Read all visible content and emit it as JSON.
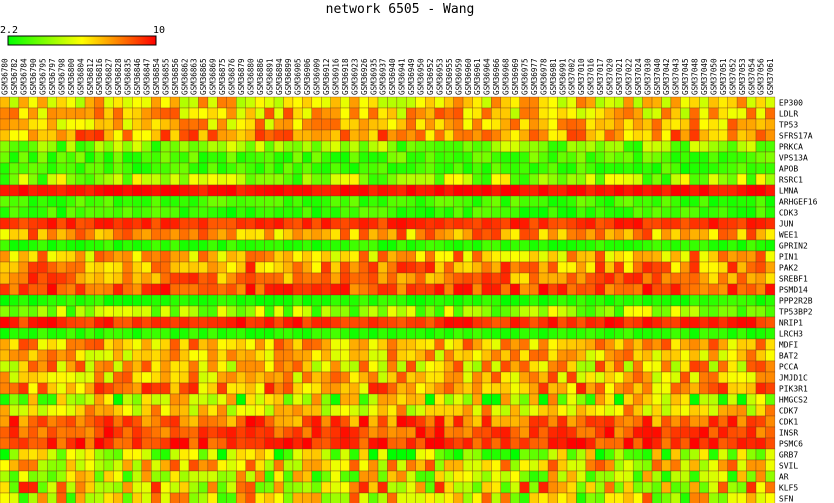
{
  "chart_data": {
    "type": "heatmap",
    "title": "network 6505 - Wang",
    "color_scale": {
      "min": 2.2,
      "max": 10,
      "min_label": "2.2",
      "max_label": "10",
      "low_color": "#00ff00",
      "high_color": "#ff0000"
    },
    "columns": [
      "GSM36780",
      "GSM36782",
      "GSM36784",
      "GSM36790",
      "GSM36795",
      "GSM36797",
      "GSM36798",
      "GSM36800",
      "GSM36804",
      "GSM36812",
      "GSM36816",
      "GSM36827",
      "GSM36828",
      "GSM36835",
      "GSM36846",
      "GSM36847",
      "GSM36854",
      "GSM36855",
      "GSM36856",
      "GSM36862",
      "GSM36863",
      "GSM36865",
      "GSM36869",
      "GSM36875",
      "GSM36876",
      "GSM36879",
      "GSM36880",
      "GSM36886",
      "GSM36891",
      "GSM36894",
      "GSM36899",
      "GSM36905",
      "GSM36906",
      "GSM36909",
      "GSM36912",
      "GSM36916",
      "GSM36918",
      "GSM36923",
      "GSM36926",
      "GSM36935",
      "GSM36937",
      "GSM36940",
      "GSM36941",
      "GSM36949",
      "GSM36950",
      "GSM36952",
      "GSM36953",
      "GSM36955",
      "GSM36959",
      "GSM36960",
      "GSM36961",
      "GSM36964",
      "GSM36966",
      "GSM36968",
      "GSM36969",
      "GSM36975",
      "GSM36977",
      "GSM36978",
      "GSM36981",
      "GSM36991",
      "GSM37002",
      "GSM37010",
      "GSM37016",
      "GSM37017",
      "GSM37020",
      "GSM37021",
      "GSM37022",
      "GSM37024",
      "GSM37030",
      "GSM37040",
      "GSM37042",
      "GSM37043",
      "GSM37045",
      "GSM37048",
      "GSM37049",
      "GSM37050",
      "GSM37051",
      "GSM37052",
      "GSM37053",
      "GSM37054",
      "GSM37056",
      "GSM37061"
    ],
    "rows": [
      "EP300",
      "LDLR",
      "TP53",
      "SFRS17A",
      "PRKCA",
      "VPS13A",
      "APOB",
      "RSRC1",
      "LMNA",
      "ARHGEF16",
      "CDK3",
      "JUN",
      "WEE1",
      "GPRIN2",
      "PIN1",
      "PAK2",
      "SREBF1",
      "PSMD14",
      "PPP2R2B",
      "TP53BP2",
      "NRIP1",
      "LRCH3",
      "MDFI",
      "BAT2",
      "PCCA",
      "JMJD1C",
      "PIK3R1",
      "HMGCS2",
      "CDK7",
      "CDK1",
      "INSR",
      "PSMC6",
      "GRB7",
      "SVIL",
      "AR",
      "KLF5",
      "SFN"
    ],
    "row_levels": [
      0.55,
      0.6,
      0.62,
      0.7,
      0.25,
      0.15,
      0.12,
      0.3,
      0.97,
      0.12,
      0.1,
      0.9,
      0.68,
      0.08,
      0.65,
      0.72,
      0.75,
      0.85,
      0.06,
      0.3,
      0.92,
      0.08,
      0.65,
      0.6,
      0.6,
      0.62,
      0.7,
      0.35,
      0.55,
      0.8,
      0.85,
      0.9,
      0.3,
      0.55,
      0.4,
      0.55,
      0.45
    ],
    "row_spread": [
      0.22,
      0.25,
      0.22,
      0.22,
      0.2,
      0.12,
      0.1,
      0.25,
      0.05,
      0.1,
      0.1,
      0.08,
      0.22,
      0.06,
      0.25,
      0.22,
      0.2,
      0.15,
      0.06,
      0.22,
      0.1,
      0.06,
      0.22,
      0.22,
      0.3,
      0.25,
      0.25,
      0.4,
      0.25,
      0.2,
      0.15,
      0.15,
      0.35,
      0.3,
      0.35,
      0.4,
      0.4
    ],
    "grid": true
  }
}
